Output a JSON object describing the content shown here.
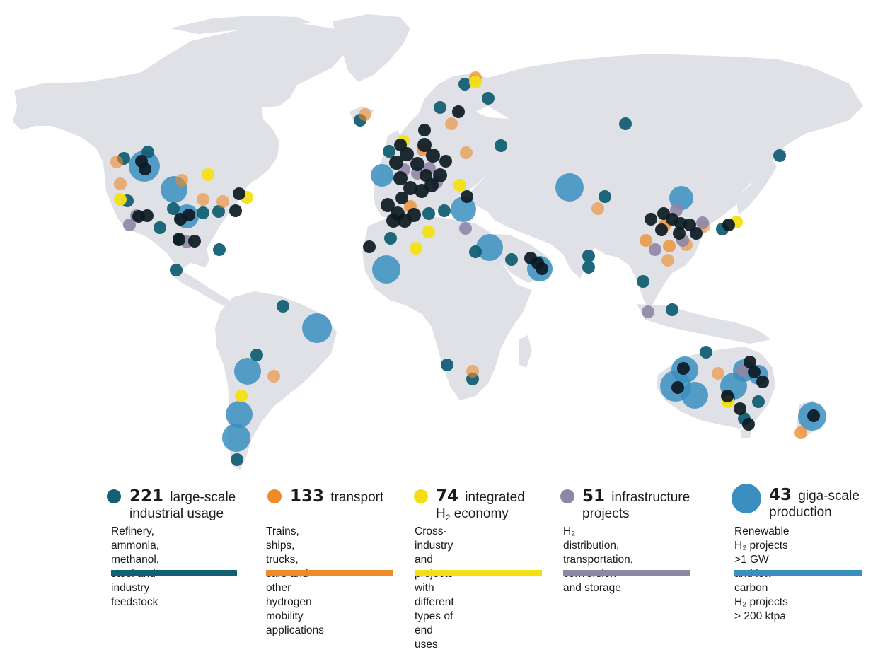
{
  "colors": {
    "land": "#dfe1e6",
    "industrial": "#135f73",
    "transport": "#ef8a28",
    "integrated": "#f3df14",
    "infrastructure": "#8f86a6",
    "giga": "#3a8fc0",
    "dark_cluster": "#0c1a22"
  },
  "legend": [
    {
      "key": "industrial",
      "count": "221",
      "label_line1": "large-scale",
      "label_line2": "industrial usage",
      "subscript_line": false,
      "desc": [
        "Refinery, ammonia,",
        "methanol, steel and",
        "industry feedstock"
      ]
    },
    {
      "key": "transport",
      "count": "133",
      "label_line1": "transport",
      "label_line2": "",
      "subscript_line": false,
      "desc": [
        "Trains, ships, trucks,",
        "cars and other hydrogen",
        "mobility applications"
      ]
    },
    {
      "key": "integrated",
      "count": "74",
      "label_line1": "integrated",
      "label_line2_pre": "H",
      "label_line2_sub": "2",
      "label_line2_post": " economy",
      "desc": [
        "Cross-industry and",
        "projects with different",
        "types of end uses"
      ]
    },
    {
      "key": "infrastructure",
      "count": "51",
      "label_line1": "infrastructure",
      "label_line2": "projects",
      "desc": [
        "H₂ distribution,",
        "transportation, conversion",
        "and storage"
      ]
    },
    {
      "key": "giga",
      "count": "43",
      "label_line1": "giga-scale",
      "label_line2": "production",
      "desc": [
        "Renewable H₂ projects",
        ">1 GW and low-carbon",
        "H₂ projects > 200 ktpa"
      ]
    }
  ]
}
